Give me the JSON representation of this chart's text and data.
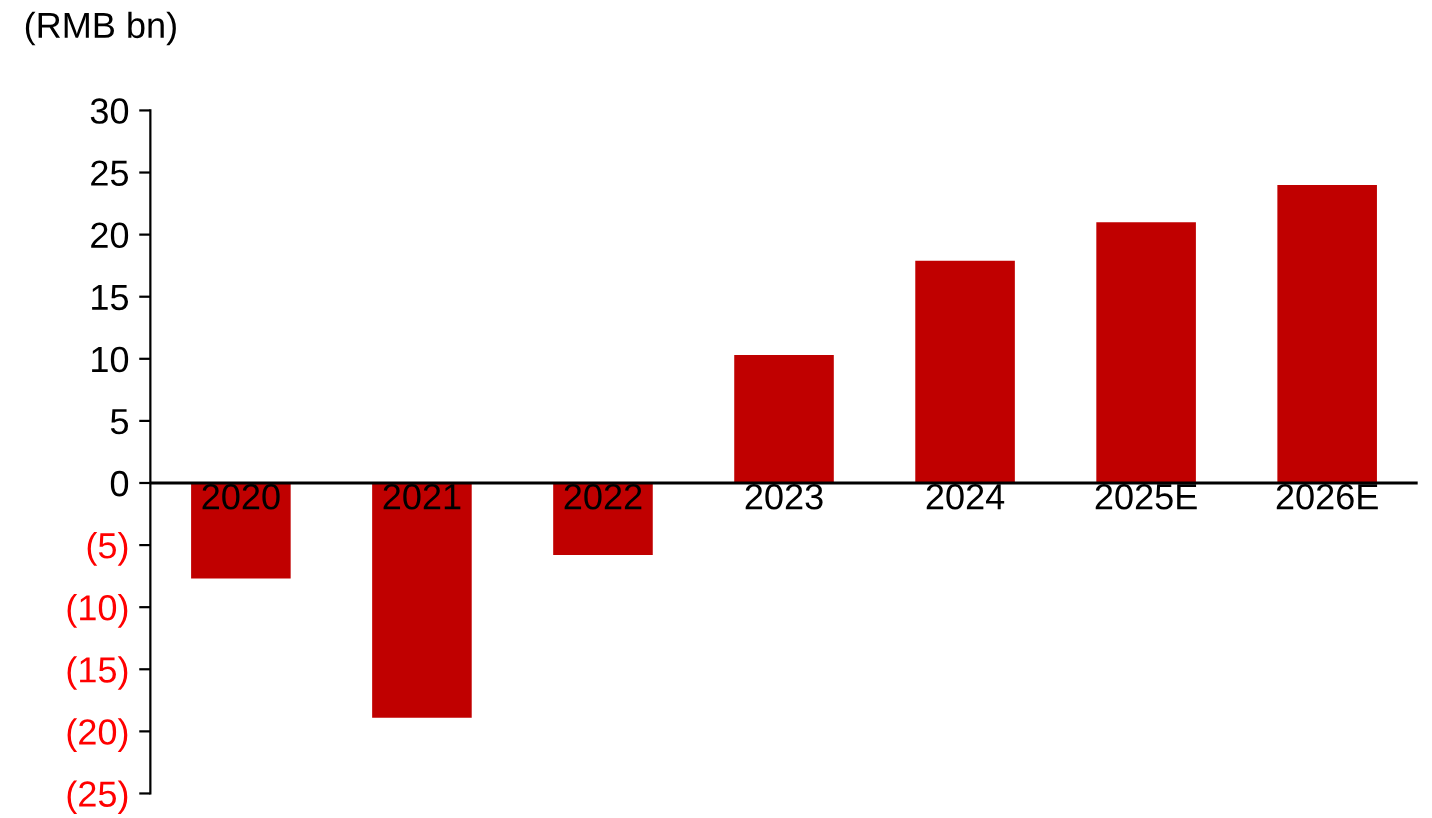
{
  "chart_data": {
    "type": "bar",
    "ylabel": "(RMB bn)",
    "categories": [
      "2020",
      "2021",
      "2022",
      "2023",
      "2024",
      "2025E",
      "2026E"
    ],
    "values": [
      -7.7,
      -18.9,
      -5.8,
      10.3,
      17.9,
      21.0,
      24.0
    ],
    "color": "#c00000",
    "ylim": [
      -25,
      30
    ],
    "yticks": [
      30,
      25,
      20,
      15,
      10,
      5,
      0,
      {
        "value": -5,
        "label": "(5)"
      },
      {
        "value": -10,
        "label": "(10)"
      },
      {
        "value": -15,
        "label": "(15)"
      },
      {
        "value": -20,
        "label": "(20)"
      },
      {
        "value": -25,
        "label": "(25)"
      }
    ],
    "grid": false,
    "legend": false
  }
}
